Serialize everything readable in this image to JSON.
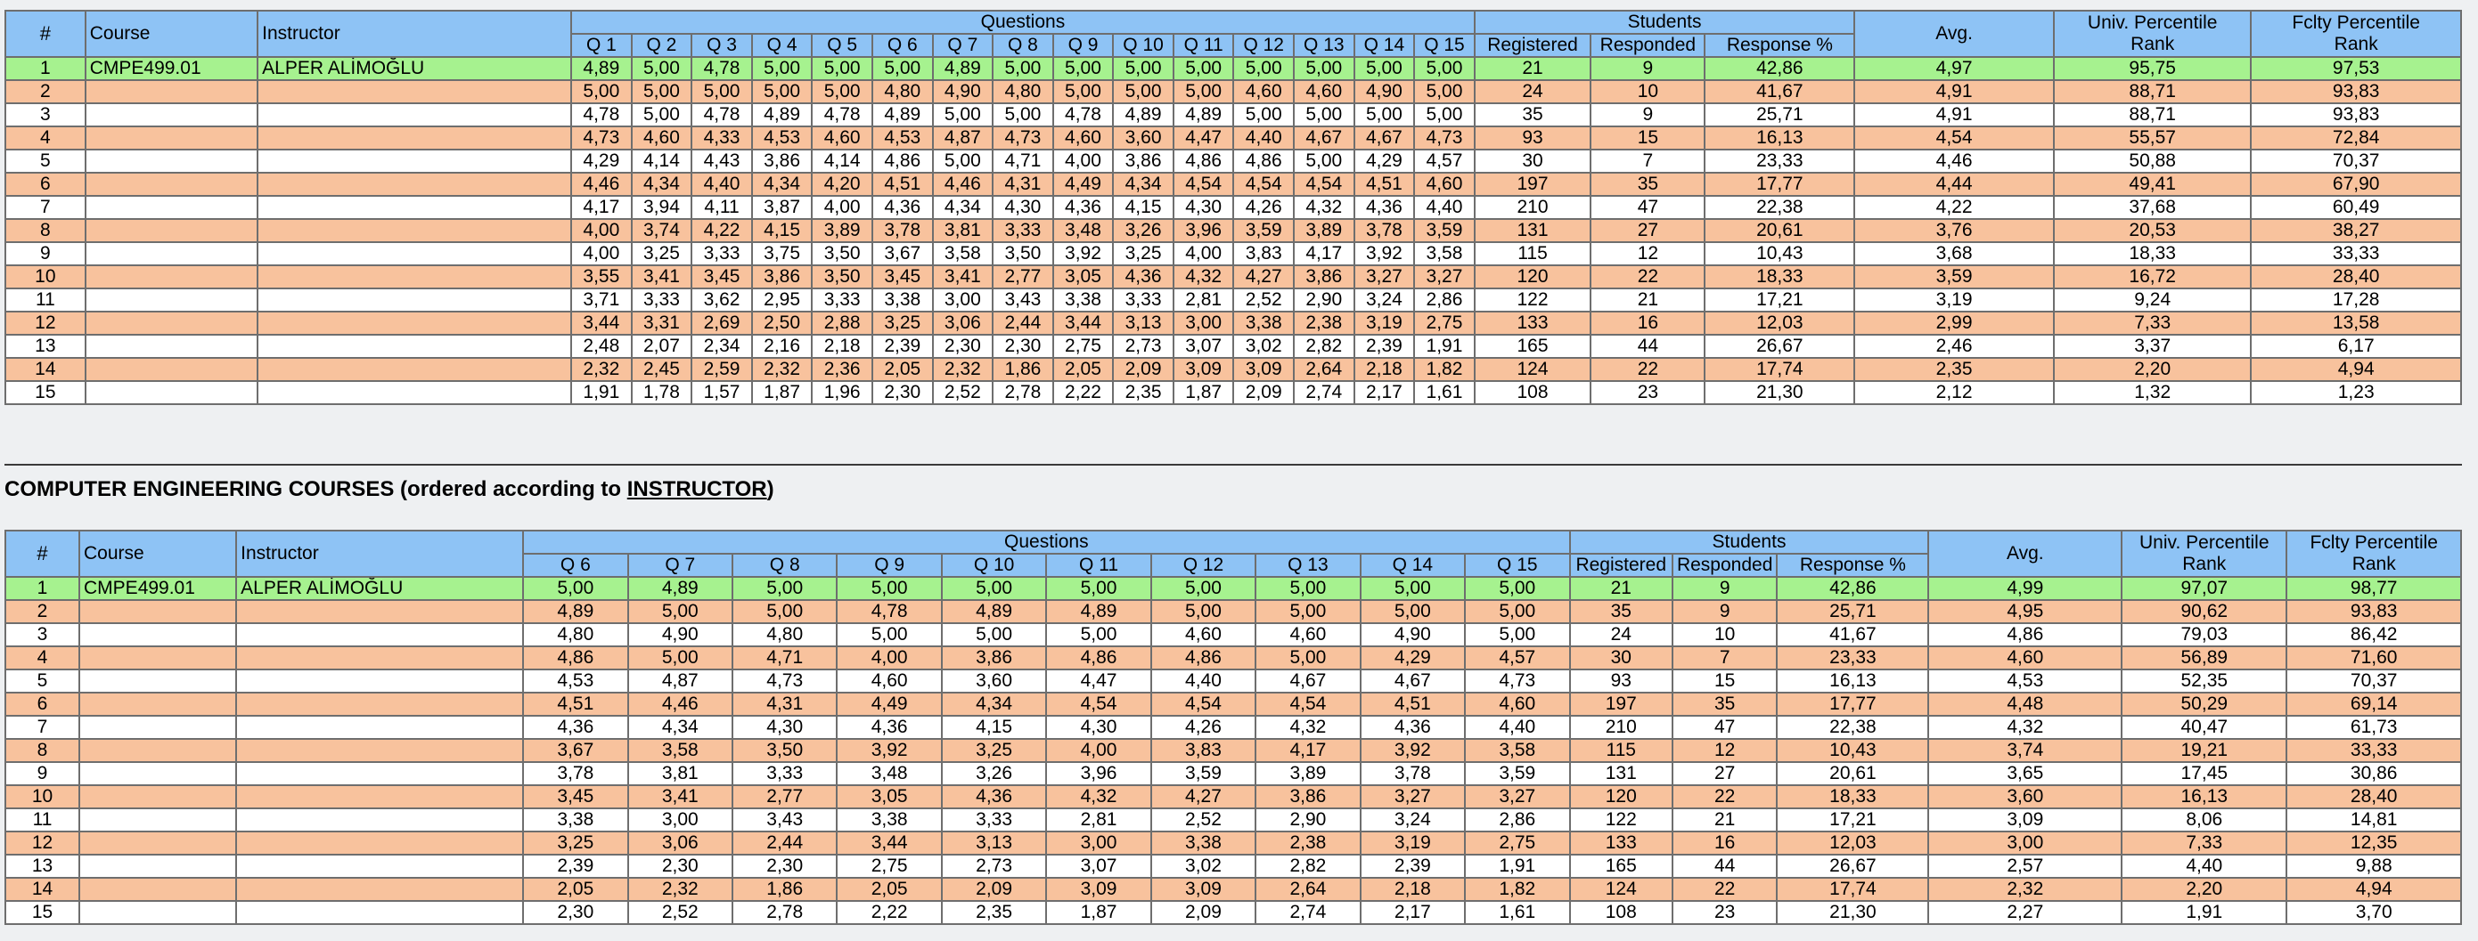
{
  "table1": {
    "headers": {
      "idx": "#",
      "course": "Course",
      "instructor": "Instructor",
      "questions": "Questions",
      "students": "Students",
      "avg": "Avg.",
      "univ": [
        "Univ. Percentile",
        "Rank"
      ],
      "fclty": [
        "Fclty Percentile",
        "Rank"
      ]
    },
    "qcols": [
      "Q 1",
      "Q 2",
      "Q 3",
      "Q 4",
      "Q 5",
      "Q 6",
      "Q 7",
      "Q 8",
      "Q 9",
      "Q 10",
      "Q 11",
      "Q 12",
      "Q 13",
      "Q 14",
      "Q 15"
    ],
    "scols": [
      "Registered",
      "Responded",
      "Response %"
    ],
    "rows": [
      [
        "1",
        "CMPE499.01",
        "ALPER ALİMOĞLU",
        "4,89",
        "5,00",
        "4,78",
        "5,00",
        "5,00",
        "5,00",
        "4,89",
        "5,00",
        "5,00",
        "5,00",
        "5,00",
        "5,00",
        "5,00",
        "5,00",
        "5,00",
        "21",
        "9",
        "42,86",
        "4,97",
        "95,75",
        "97,53"
      ],
      [
        "2",
        "",
        "",
        "5,00",
        "5,00",
        "5,00",
        "5,00",
        "5,00",
        "4,80",
        "4,90",
        "4,80",
        "5,00",
        "5,00",
        "5,00",
        "4,60",
        "4,60",
        "4,90",
        "5,00",
        "24",
        "10",
        "41,67",
        "4,91",
        "88,71",
        "93,83"
      ],
      [
        "3",
        "",
        "",
        "4,78",
        "5,00",
        "4,78",
        "4,89",
        "4,78",
        "4,89",
        "5,00",
        "5,00",
        "4,78",
        "4,89",
        "4,89",
        "5,00",
        "5,00",
        "5,00",
        "5,00",
        "35",
        "9",
        "25,71",
        "4,91",
        "88,71",
        "93,83"
      ],
      [
        "4",
        "",
        "",
        "4,73",
        "4,60",
        "4,33",
        "4,53",
        "4,60",
        "4,53",
        "4,87",
        "4,73",
        "4,60",
        "3,60",
        "4,47",
        "4,40",
        "4,67",
        "4,67",
        "4,73",
        "93",
        "15",
        "16,13",
        "4,54",
        "55,57",
        "72,84"
      ],
      [
        "5",
        "",
        "",
        "4,29",
        "4,14",
        "4,43",
        "3,86",
        "4,14",
        "4,86",
        "5,00",
        "4,71",
        "4,00",
        "3,86",
        "4,86",
        "4,86",
        "5,00",
        "4,29",
        "4,57",
        "30",
        "7",
        "23,33",
        "4,46",
        "50,88",
        "70,37"
      ],
      [
        "6",
        "",
        "",
        "4,46",
        "4,34",
        "4,40",
        "4,34",
        "4,20",
        "4,51",
        "4,46",
        "4,31",
        "4,49",
        "4,34",
        "4,54",
        "4,54",
        "4,54",
        "4,51",
        "4,60",
        "197",
        "35",
        "17,77",
        "4,44",
        "49,41",
        "67,90"
      ],
      [
        "7",
        "",
        "",
        "4,17",
        "3,94",
        "4,11",
        "3,87",
        "4,00",
        "4,36",
        "4,34",
        "4,30",
        "4,36",
        "4,15",
        "4,30",
        "4,26",
        "4,32",
        "4,36",
        "4,40",
        "210",
        "47",
        "22,38",
        "4,22",
        "37,68",
        "60,49"
      ],
      [
        "8",
        "",
        "",
        "4,00",
        "3,74",
        "4,22",
        "4,15",
        "3,89",
        "3,78",
        "3,81",
        "3,33",
        "3,48",
        "3,26",
        "3,96",
        "3,59",
        "3,89",
        "3,78",
        "3,59",
        "131",
        "27",
        "20,61",
        "3,76",
        "20,53",
        "38,27"
      ],
      [
        "9",
        "",
        "",
        "4,00",
        "3,25",
        "3,33",
        "3,75",
        "3,50",
        "3,67",
        "3,58",
        "3,50",
        "3,92",
        "3,25",
        "4,00",
        "3,83",
        "4,17",
        "3,92",
        "3,58",
        "115",
        "12",
        "10,43",
        "3,68",
        "18,33",
        "33,33"
      ],
      [
        "10",
        "",
        "",
        "3,55",
        "3,41",
        "3,45",
        "3,86",
        "3,50",
        "3,45",
        "3,41",
        "2,77",
        "3,05",
        "4,36",
        "4,32",
        "4,27",
        "3,86",
        "3,27",
        "3,27",
        "120",
        "22",
        "18,33",
        "3,59",
        "16,72",
        "28,40"
      ],
      [
        "11",
        "",
        "",
        "3,71",
        "3,33",
        "3,62",
        "2,95",
        "3,33",
        "3,38",
        "3,00",
        "3,43",
        "3,38",
        "3,33",
        "2,81",
        "2,52",
        "2,90",
        "3,24",
        "2,86",
        "122",
        "21",
        "17,21",
        "3,19",
        "9,24",
        "17,28"
      ],
      [
        "12",
        "",
        "",
        "3,44",
        "3,31",
        "2,69",
        "2,50",
        "2,88",
        "3,25",
        "3,06",
        "2,44",
        "3,44",
        "3,13",
        "3,00",
        "3,38",
        "2,38",
        "3,19",
        "2,75",
        "133",
        "16",
        "12,03",
        "2,99",
        "7,33",
        "13,58"
      ],
      [
        "13",
        "",
        "",
        "2,48",
        "2,07",
        "2,34",
        "2,16",
        "2,18",
        "2,39",
        "2,30",
        "2,30",
        "2,75",
        "2,73",
        "3,07",
        "3,02",
        "2,82",
        "2,39",
        "1,91",
        "165",
        "44",
        "26,67",
        "2,46",
        "3,37",
        "6,17"
      ],
      [
        "14",
        "",
        "",
        "2,32",
        "2,45",
        "2,59",
        "2,32",
        "2,36",
        "2,05",
        "2,32",
        "1,86",
        "2,05",
        "2,09",
        "3,09",
        "3,09",
        "2,64",
        "2,18",
        "1,82",
        "124",
        "22",
        "17,74",
        "2,35",
        "2,20",
        "4,94"
      ],
      [
        "15",
        "",
        "",
        "1,91",
        "1,78",
        "1,57",
        "1,87",
        "1,96",
        "2,30",
        "2,52",
        "2,78",
        "2,22",
        "2,35",
        "1,87",
        "2,09",
        "2,74",
        "2,17",
        "1,61",
        "108",
        "23",
        "21,30",
        "2,12",
        "1,32",
        "1,23"
      ]
    ]
  },
  "heading": {
    "prefix": "COMPUTER ENGINEERING COURSES (ordered according to ",
    "link": "INSTRUCTOR",
    "suffix": ")"
  },
  "table2": {
    "headers": {
      "idx": "#",
      "course": "Course",
      "instructor": "Instructor",
      "questions": "Questions",
      "students": "Students",
      "avg": "Avg.",
      "univ": [
        "Univ. Percentile",
        "Rank"
      ],
      "fclty": [
        "Fclty Percentile",
        "Rank"
      ]
    },
    "qcols": [
      "Q 6",
      "Q 7",
      "Q 8",
      "Q 9",
      "Q 10",
      "Q 11",
      "Q 12",
      "Q 13",
      "Q 14",
      "Q 15"
    ],
    "scols": [
      "Registered",
      "Responded",
      "Response %"
    ],
    "rows": [
      [
        "1",
        "CMPE499.01",
        "ALPER ALİMOĞLU",
        "5,00",
        "4,89",
        "5,00",
        "5,00",
        "5,00",
        "5,00",
        "5,00",
        "5,00",
        "5,00",
        "5,00",
        "21",
        "9",
        "42,86",
        "4,99",
        "97,07",
        "98,77"
      ],
      [
        "2",
        "",
        "",
        "4,89",
        "5,00",
        "5,00",
        "4,78",
        "4,89",
        "4,89",
        "5,00",
        "5,00",
        "5,00",
        "5,00",
        "35",
        "9",
        "25,71",
        "4,95",
        "90,62",
        "93,83"
      ],
      [
        "3",
        "",
        "",
        "4,80",
        "4,90",
        "4,80",
        "5,00",
        "5,00",
        "5,00",
        "4,60",
        "4,60",
        "4,90",
        "5,00",
        "24",
        "10",
        "41,67",
        "4,86",
        "79,03",
        "86,42"
      ],
      [
        "4",
        "",
        "",
        "4,86",
        "5,00",
        "4,71",
        "4,00",
        "3,86",
        "4,86",
        "4,86",
        "5,00",
        "4,29",
        "4,57",
        "30",
        "7",
        "23,33",
        "4,60",
        "56,89",
        "71,60"
      ],
      [
        "5",
        "",
        "",
        "4,53",
        "4,87",
        "4,73",
        "4,60",
        "3,60",
        "4,47",
        "4,40",
        "4,67",
        "4,67",
        "4,73",
        "93",
        "15",
        "16,13",
        "4,53",
        "52,35",
        "70,37"
      ],
      [
        "6",
        "",
        "",
        "4,51",
        "4,46",
        "4,31",
        "4,49",
        "4,34",
        "4,54",
        "4,54",
        "4,54",
        "4,51",
        "4,60",
        "197",
        "35",
        "17,77",
        "4,48",
        "50,29",
        "69,14"
      ],
      [
        "7",
        "",
        "",
        "4,36",
        "4,34",
        "4,30",
        "4,36",
        "4,15",
        "4,30",
        "4,26",
        "4,32",
        "4,36",
        "4,40",
        "210",
        "47",
        "22,38",
        "4,32",
        "40,47",
        "61,73"
      ],
      [
        "8",
        "",
        "",
        "3,67",
        "3,58",
        "3,50",
        "3,92",
        "3,25",
        "4,00",
        "3,83",
        "4,17",
        "3,92",
        "3,58",
        "115",
        "12",
        "10,43",
        "3,74",
        "19,21",
        "33,33"
      ],
      [
        "9",
        "",
        "",
        "3,78",
        "3,81",
        "3,33",
        "3,48",
        "3,26",
        "3,96",
        "3,59",
        "3,89",
        "3,78",
        "3,59",
        "131",
        "27",
        "20,61",
        "3,65",
        "17,45",
        "30,86"
      ],
      [
        "10",
        "",
        "",
        "3,45",
        "3,41",
        "2,77",
        "3,05",
        "4,36",
        "4,32",
        "4,27",
        "3,86",
        "3,27",
        "3,27",
        "120",
        "22",
        "18,33",
        "3,60",
        "16,13",
        "28,40"
      ],
      [
        "11",
        "",
        "",
        "3,38",
        "3,00",
        "3,43",
        "3,38",
        "3,33",
        "2,81",
        "2,52",
        "2,90",
        "3,24",
        "2,86",
        "122",
        "21",
        "17,21",
        "3,09",
        "8,06",
        "14,81"
      ],
      [
        "12",
        "",
        "",
        "3,25",
        "3,06",
        "2,44",
        "3,44",
        "3,13",
        "3,00",
        "3,38",
        "2,38",
        "3,19",
        "2,75",
        "133",
        "16",
        "12,03",
        "3,00",
        "7,33",
        "12,35"
      ],
      [
        "13",
        "",
        "",
        "2,39",
        "2,30",
        "2,30",
        "2,75",
        "2,73",
        "3,07",
        "3,02",
        "2,82",
        "2,39",
        "1,91",
        "165",
        "44",
        "26,67",
        "2,57",
        "4,40",
        "9,88"
      ],
      [
        "14",
        "",
        "",
        "2,05",
        "2,32",
        "1,86",
        "2,05",
        "2,09",
        "3,09",
        "3,09",
        "2,64",
        "2,18",
        "1,82",
        "124",
        "22",
        "17,74",
        "2,32",
        "2,20",
        "4,94"
      ],
      [
        "15",
        "",
        "",
        "2,30",
        "2,52",
        "2,78",
        "2,22",
        "2,35",
        "1,87",
        "2,09",
        "2,74",
        "2,17",
        "1,61",
        "108",
        "23",
        "21,30",
        "2,27",
        "1,91",
        "3,70"
      ]
    ]
  }
}
